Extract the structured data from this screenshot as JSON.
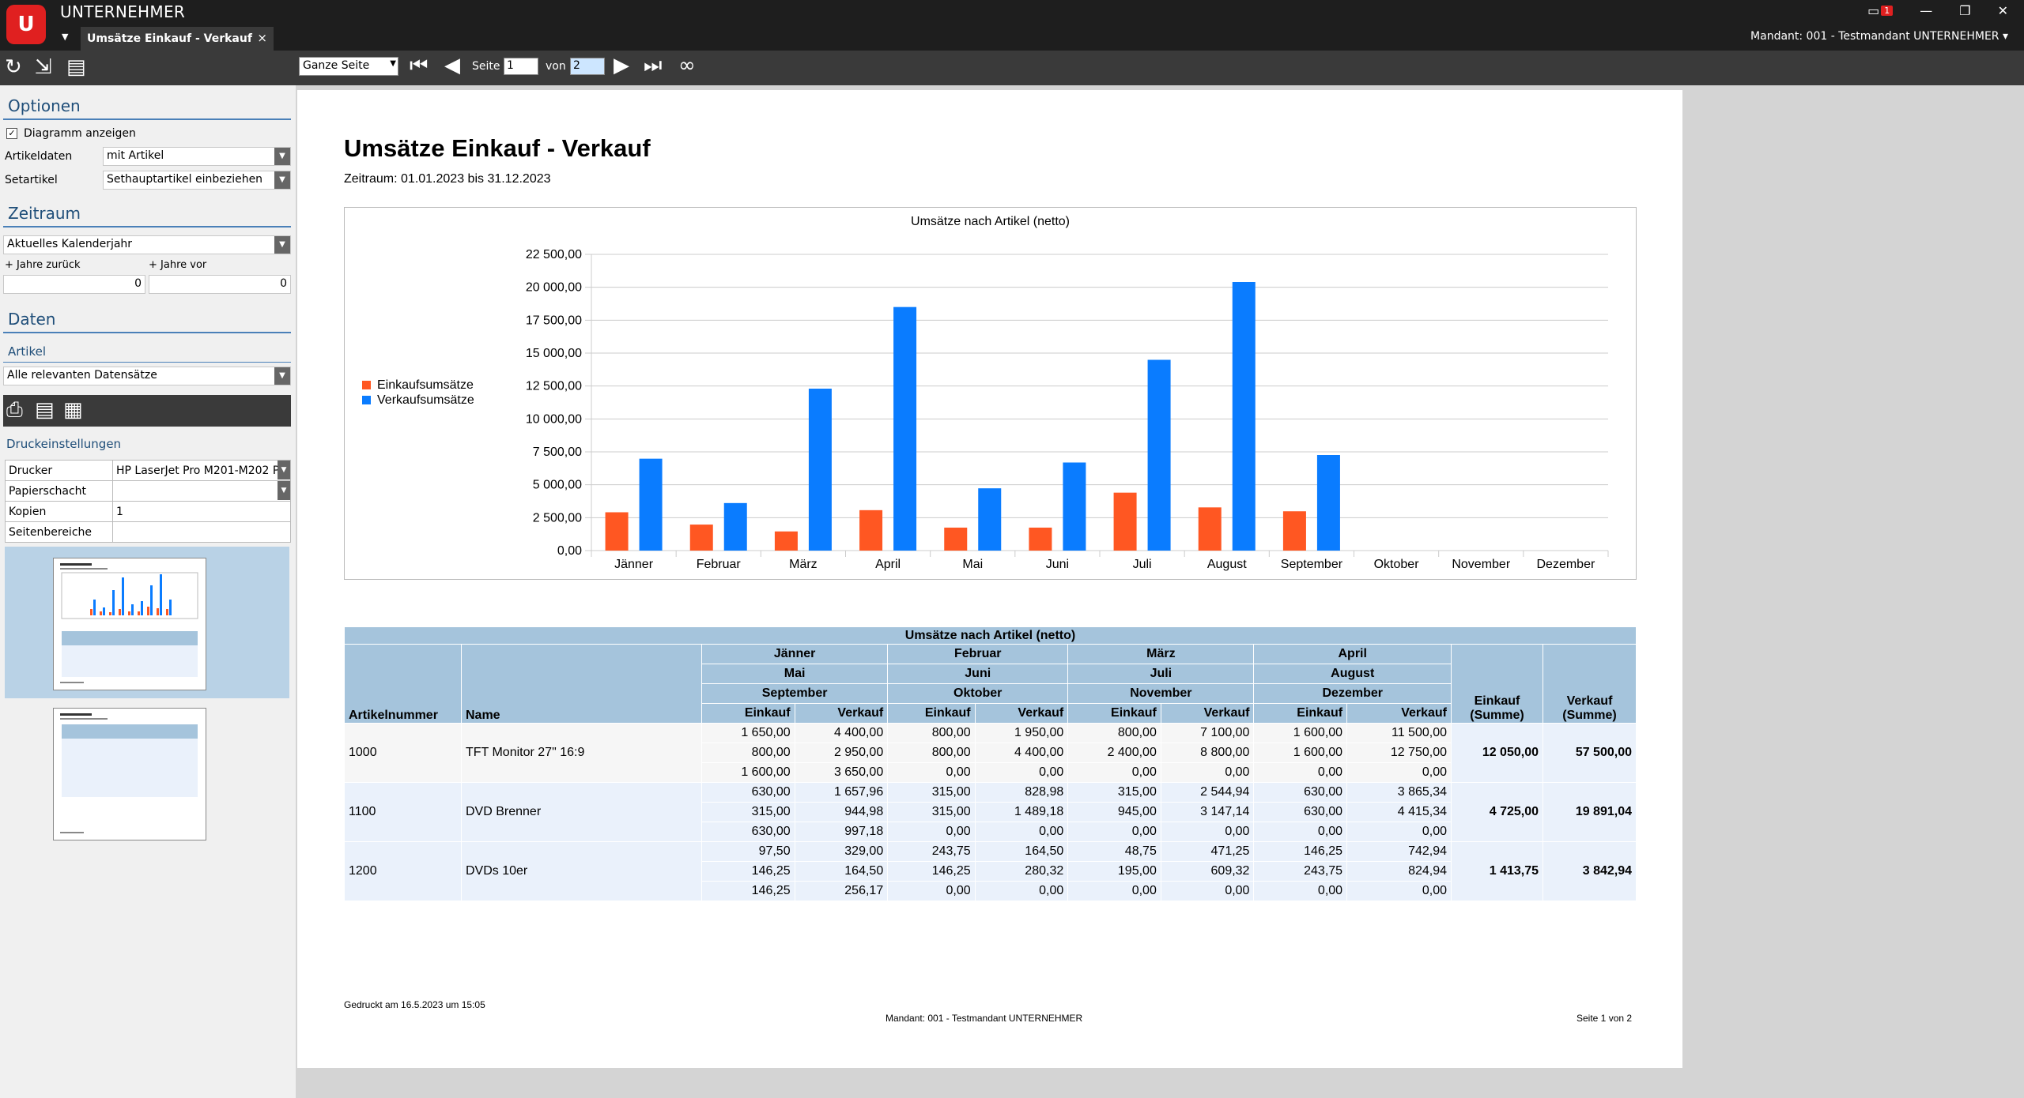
{
  "app": {
    "name": "UNTERNEHMER",
    "logo_text": "U",
    "notification_count": "1",
    "mandant": "Mandant: 001 - Testmandant UNTERNEHMER",
    "tab_title": "Umsätze Einkauf - Verkauf",
    "tab_close": "×"
  },
  "viewer_toolbar": {
    "zoom": "Ganze Seite",
    "page_label": "Seite",
    "page_value": "1",
    "of_label": "von",
    "of_value": "2"
  },
  "sidebar": {
    "optionen": {
      "title": "Optionen",
      "show_chart_label": "Diagramm anzeigen",
      "show_chart_checked": true,
      "artikeldaten_label": "Artikeldaten",
      "artikeldaten_value": "mit Artikel",
      "setartikel_label": "Setartikel",
      "setartikel_value": "Sethauptartikel einbeziehen"
    },
    "zeitraum": {
      "title": "Zeitraum",
      "value": "Aktuelles Kalenderjahr",
      "years_back_label": "+ Jahre zurück",
      "years_back_value": "0",
      "years_forward_label": "+ Jahre vor",
      "years_forward_value": "0"
    },
    "daten": {
      "title": "Daten",
      "artikel_label": "Artikel",
      "artikel_value": "Alle relevanten Datensätze"
    },
    "druck": {
      "title": "Druckeinstellungen",
      "rows": [
        {
          "label": "Drucker",
          "value": "HP LaserJet Pro M201-M202 P"
        },
        {
          "label": "Papierschacht",
          "value": ""
        },
        {
          "label": "Kopien",
          "value": "1"
        },
        {
          "label": "Seitenbereiche",
          "value": ""
        }
      ]
    }
  },
  "report": {
    "title": "Umsätze Einkauf - Verkauf",
    "period": "Zeitraum: 01.01.2023 bis 31.12.2023",
    "footer_printed": "Gedruckt am 16.5.2023 um 15:05",
    "footer_mandant": "Mandant: 001 - Testmandant UNTERNEHMER",
    "footer_page": "Seite 1 von 2"
  },
  "chart_data": {
    "type": "bar",
    "title": "Umsätze nach Artikel (netto)",
    "categories": [
      "Jänner",
      "Februar",
      "März",
      "April",
      "Mai",
      "Juni",
      "Juli",
      "August",
      "September",
      "Oktober",
      "November",
      "Dezember"
    ],
    "series": [
      {
        "name": "Einkaufsumsätze",
        "color": "#ff5722",
        "values": [
          2910,
          1975,
          1455,
          3070,
          1745,
          1745,
          4400,
          3280,
          2985,
          0,
          0,
          0
        ]
      },
      {
        "name": "Verkaufsumsätze",
        "color": "#0a7cff",
        "values": [
          6980,
          3610,
          12300,
          18500,
          4730,
          6690,
          14490,
          20400,
          7260,
          0,
          0,
          0
        ]
      }
    ],
    "ylim": [
      0,
      22500
    ],
    "yticks": [
      "0,00",
      "2 500,00",
      "5 000,00",
      "7 500,00",
      "10 000,00",
      "12 500,00",
      "15 000,00",
      "17 500,00",
      "20 000,00",
      "22 500,00"
    ],
    "grid": true,
    "legend": "left"
  },
  "table": {
    "caption": "Umsätze nach Artikel (netto)",
    "month_groups": [
      [
        "Jänner",
        "Mai",
        "September"
      ],
      [
        "Februar",
        "Juni",
        "Oktober"
      ],
      [
        "März",
        "Juli",
        "November"
      ],
      [
        "April",
        "August",
        "Dezember"
      ]
    ],
    "col_artikelnummer": "Artikelnummer",
    "col_name": "Name",
    "col_einkauf": "Einkauf",
    "col_verkauf": "Verkauf",
    "col_einkauf_sum": "Einkauf (Summe)",
    "col_verkauf_sum": "Verkauf (Summe)",
    "articles": [
      {
        "nr": "1000",
        "name": "TFT Monitor 27\" 16:9",
        "rows": [
          [
            "1 650,00",
            "4 400,00",
            "800,00",
            "1 950,00",
            "800,00",
            "7 100,00",
            "1 600,00",
            "11 500,00"
          ],
          [
            "800,00",
            "2 950,00",
            "800,00",
            "4 400,00",
            "2 400,00",
            "8 800,00",
            "1 600,00",
            "12 750,00"
          ],
          [
            "1 600,00",
            "3 650,00",
            "0,00",
            "0,00",
            "0,00",
            "0,00",
            "0,00",
            "0,00"
          ]
        ],
        "sum_einkauf": "12 050,00",
        "sum_verkauf": "57 500,00"
      },
      {
        "nr": "1100",
        "name": "DVD Brenner",
        "rows": [
          [
            "630,00",
            "1 657,96",
            "315,00",
            "828,98",
            "315,00",
            "2 544,94",
            "630,00",
            "3 865,34"
          ],
          [
            "315,00",
            "944,98",
            "315,00",
            "1 489,18",
            "945,00",
            "3 147,14",
            "630,00",
            "4 415,34"
          ],
          [
            "630,00",
            "997,18",
            "0,00",
            "0,00",
            "0,00",
            "0,00",
            "0,00",
            "0,00"
          ]
        ],
        "sum_einkauf": "4 725,00",
        "sum_verkauf": "19 891,04"
      },
      {
        "nr": "1200",
        "name": "DVDs 10er",
        "rows": [
          [
            "97,50",
            "329,00",
            "243,75",
            "164,50",
            "48,75",
            "471,25",
            "146,25",
            "742,94"
          ],
          [
            "146,25",
            "164,50",
            "146,25",
            "280,32",
            "195,00",
            "609,32",
            "243,75",
            "824,94"
          ],
          [
            "146,25",
            "256,17",
            "0,00",
            "0,00",
            "0,00",
            "0,00",
            "0,00",
            "0,00"
          ]
        ],
        "sum_einkauf": "1 413,75",
        "sum_verkauf": "3 842,94"
      }
    ]
  }
}
